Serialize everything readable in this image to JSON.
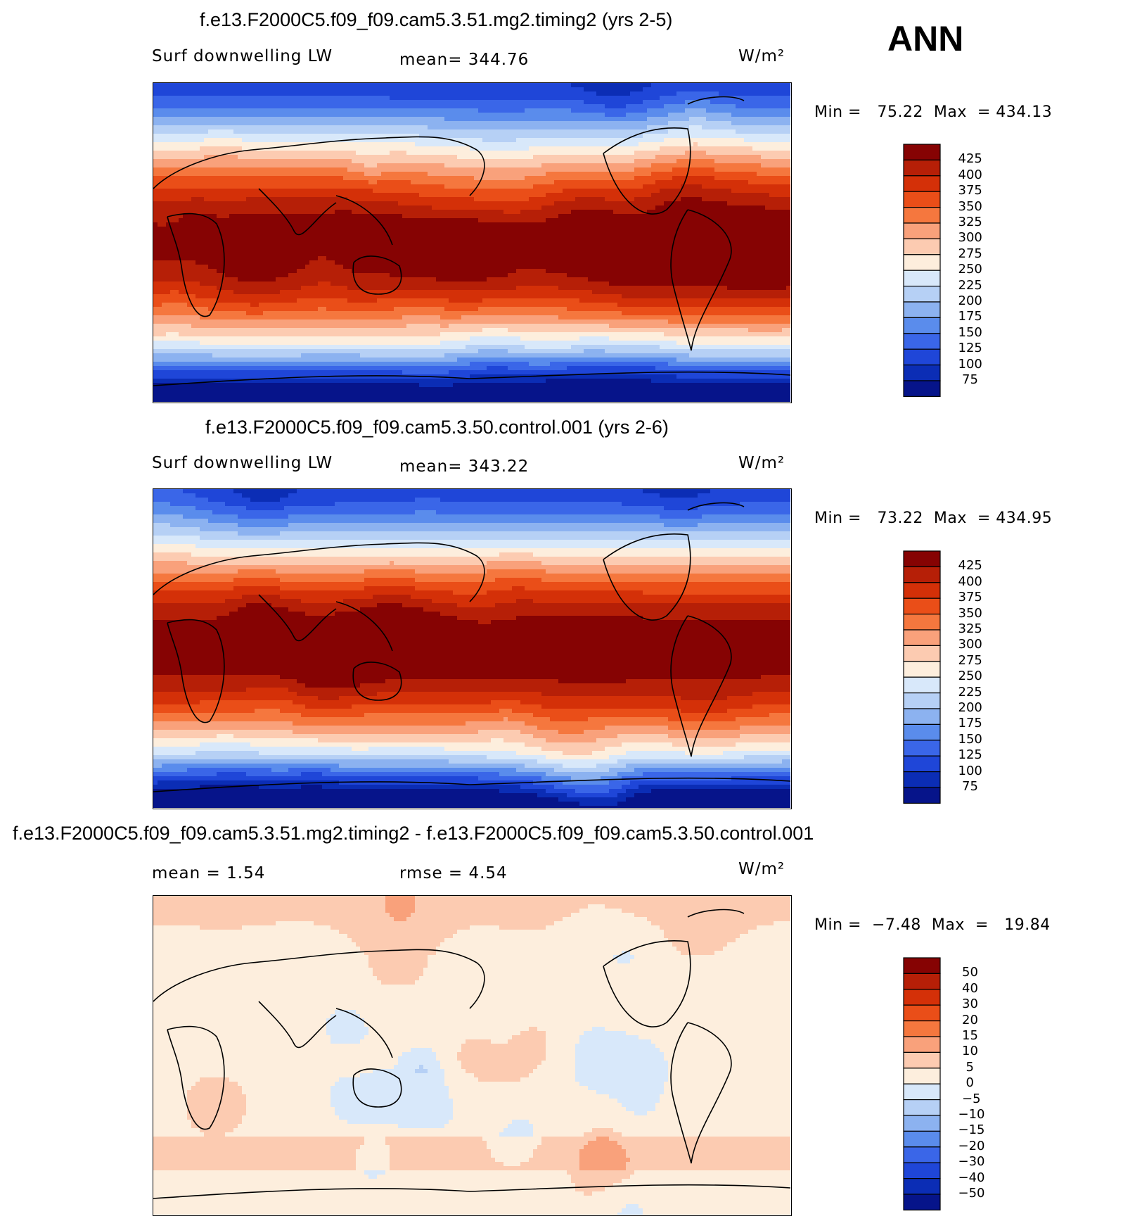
{
  "header": {
    "season": "ANN"
  },
  "panels": [
    {
      "id": "test",
      "title": "f.e13.F2000C5.f09_f09.cam5.3.51.mg2.timing2 (yrs 2-5)",
      "left_label": "Surf downwelling LW",
      "center_label": "mean= 344.76",
      "units": "W/m²",
      "minmax": "Min =   75.22  Max  = 434.13",
      "colorbar_labels": [
        "425",
        "400",
        "375",
        "350",
        "325",
        "300",
        "275",
        "250",
        "225",
        "200",
        "175",
        "150",
        "125",
        "100",
        "75"
      ],
      "colorbar_colors": [
        "#860303",
        "#b61f07",
        "#d43008",
        "#ea4e18",
        "#f5773e",
        "#f9a17b",
        "#fccbb1",
        "#fdeedd",
        "#d8e8fa",
        "#b6d0f5",
        "#8cb2f0",
        "#5a8cec",
        "#3a66e8",
        "#1f46d8",
        "#0b2db5",
        "#06148a"
      ],
      "map_style": "absolute",
      "map_seed": 3
    },
    {
      "id": "control",
      "title": "f.e13.F2000C5.f09_f09.cam5.3.50.control.001 (yrs 2-6)",
      "left_label": "Surf downwelling LW",
      "center_label": "mean= 343.22",
      "units": "W/m²",
      "minmax": "Min =   73.22  Max  = 434.95",
      "colorbar_labels": [
        "425",
        "400",
        "375",
        "350",
        "325",
        "300",
        "275",
        "250",
        "225",
        "200",
        "175",
        "150",
        "125",
        "100",
        "75"
      ],
      "colorbar_colors": [
        "#860303",
        "#b61f07",
        "#d43008",
        "#ea4e18",
        "#f5773e",
        "#f9a17b",
        "#fccbb1",
        "#fdeedd",
        "#d8e8fa",
        "#b6d0f5",
        "#8cb2f0",
        "#5a8cec",
        "#3a66e8",
        "#1f46d8",
        "#0b2db5",
        "#06148a"
      ],
      "map_style": "absolute",
      "map_seed": 7
    },
    {
      "id": "diff",
      "title": "f.e13.F2000C5.f09_f09.cam5.3.51.mg2.timing2 - f.e13.F2000C5.f09_f09.cam5.3.50.control.001",
      "left_label": "mean =     1.54",
      "center_label": "rmse =     4.54",
      "units": "W/m²",
      "minmax": "Min =  −7.48  Max  =   19.84",
      "colorbar_labels": [
        "50",
        "40",
        "30",
        "20",
        "15",
        "10",
        "5",
        "0",
        "−5",
        "−10",
        "−15",
        "−20",
        "−30",
        "−40",
        "−50"
      ],
      "colorbar_colors": [
        "#860303",
        "#b61f07",
        "#d43008",
        "#ea4e18",
        "#f5773e",
        "#f9a17b",
        "#fccbb1",
        "#fdeedd",
        "#d8e8fa",
        "#b6d0f5",
        "#8cb2f0",
        "#5a8cec",
        "#3a66e8",
        "#1f46d8",
        "#0b2db5",
        "#06148a"
      ],
      "map_style": "difference",
      "map_seed": 11
    }
  ]
}
